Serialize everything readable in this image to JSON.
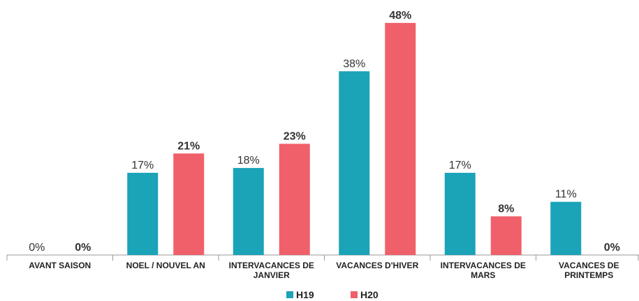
{
  "chart_data": {
    "type": "bar",
    "categories": [
      "AVANT SAISON",
      "NOEL / NOUVEL AN",
      "INTERVACANCES DE JANVIER",
      "VACANCES D'HIVER",
      "INTERVACANCES DE MARS",
      "VACANCES DE PRINTEMPS"
    ],
    "series": [
      {
        "name": "H19",
        "color": "#1ba3b8",
        "values": [
          0,
          17,
          18,
          38,
          17,
          11
        ],
        "value_labels": [
          "0%",
          "17%",
          "18%",
          "38%",
          "17%",
          "11%"
        ]
      },
      {
        "name": "H20",
        "color": "#f0606a",
        "values": [
          0,
          21,
          23,
          48,
          8,
          0
        ],
        "value_labels": [
          "0%",
          "21%",
          "23%",
          "48%",
          "8%",
          "0%"
        ]
      }
    ],
    "ylim": [
      0,
      50
    ],
    "legend": "bottom"
  }
}
